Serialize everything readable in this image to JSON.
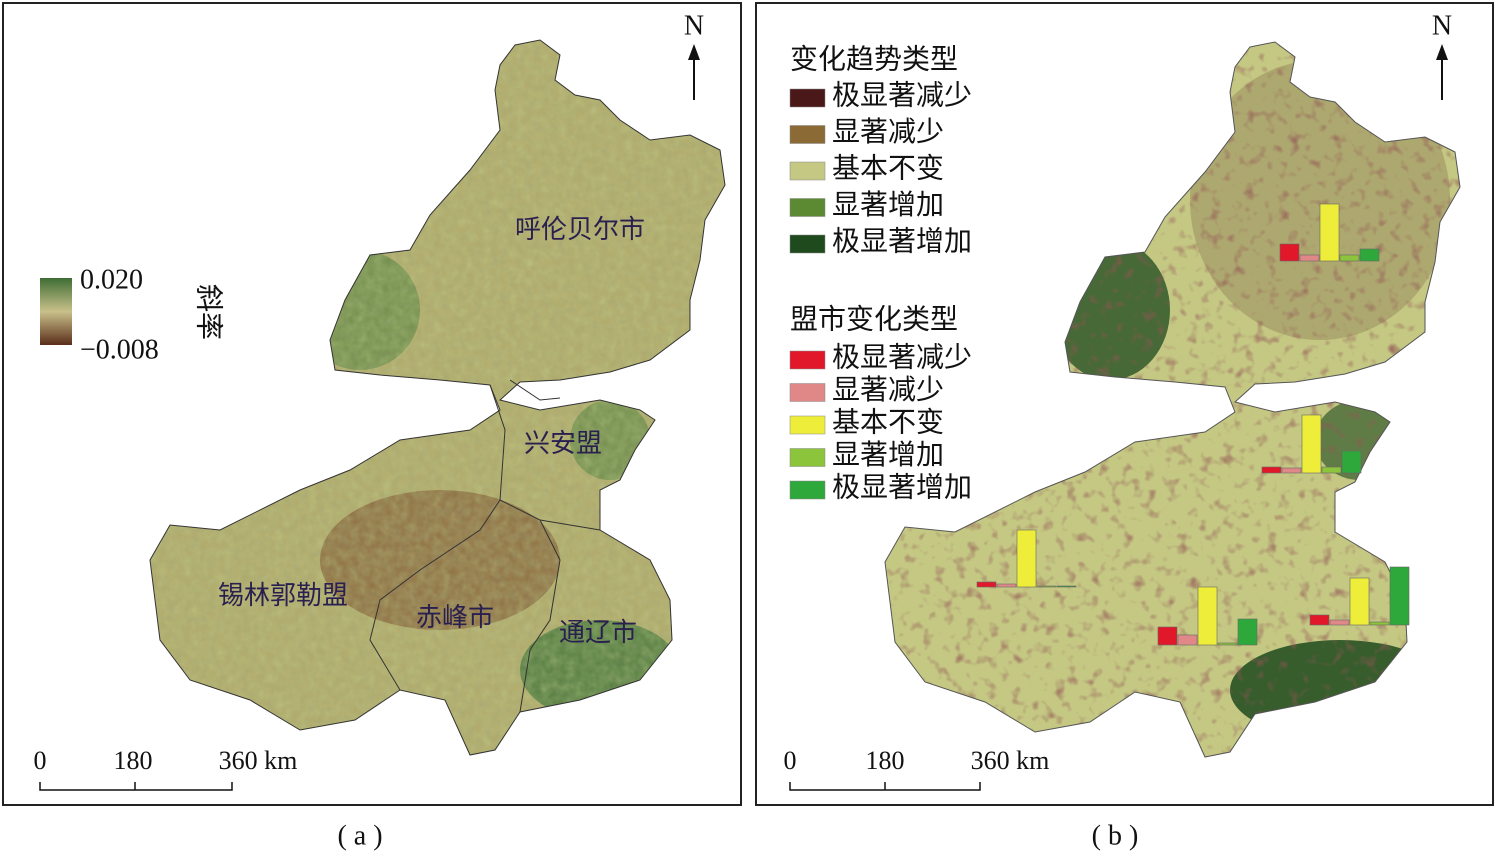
{
  "panel_a": {
    "caption": "( a )",
    "north": "N",
    "legend": {
      "title": "斜率",
      "max": "0.020",
      "min": "−0.008"
    },
    "regions": [
      "呼伦贝尔市",
      "兴安盟",
      "锡林郭勒盟",
      "赤峰市",
      "通辽市"
    ],
    "scale": [
      "0",
      "180",
      "360 km"
    ]
  },
  "panel_b": {
    "caption": "( b )",
    "north": "N",
    "legend_trend": {
      "title": "变化趋势类型",
      "items": [
        {
          "label": "极显著减少",
          "color": "#4a1818"
        },
        {
          "label": "显著减少",
          "color": "#8b6a35"
        },
        {
          "label": "基本不变",
          "color": "#c4c883"
        },
        {
          "label": "显著增加",
          "color": "#5b8a33"
        },
        {
          "label": "极显著增加",
          "color": "#1e4a1e"
        }
      ]
    },
    "legend_city": {
      "title": "盟市变化类型",
      "items": [
        {
          "label": "极显著减少",
          "color": "#e0182a"
        },
        {
          "label": "显著减少",
          "color": "#e08888"
        },
        {
          "label": "基本不变",
          "color": "#eded3a"
        },
        {
          "label": "显著增加",
          "color": "#8cc43c"
        },
        {
          "label": "极显著增加",
          "color": "#2ea83a"
        }
      ]
    },
    "region_charts": [
      {
        "values": [
          17,
          6,
          57,
          6,
          12
        ]
      },
      {
        "values": [
          6,
          5,
          58,
          6,
          22
        ]
      },
      {
        "values": [
          5,
          3,
          57,
          1,
          1
        ]
      },
      {
        "values": [
          18,
          10,
          58,
          2,
          26
        ]
      },
      {
        "values": [
          10,
          5,
          47,
          3,
          58
        ]
      }
    ],
    "scale": [
      "0",
      "180",
      "360 km"
    ]
  }
}
